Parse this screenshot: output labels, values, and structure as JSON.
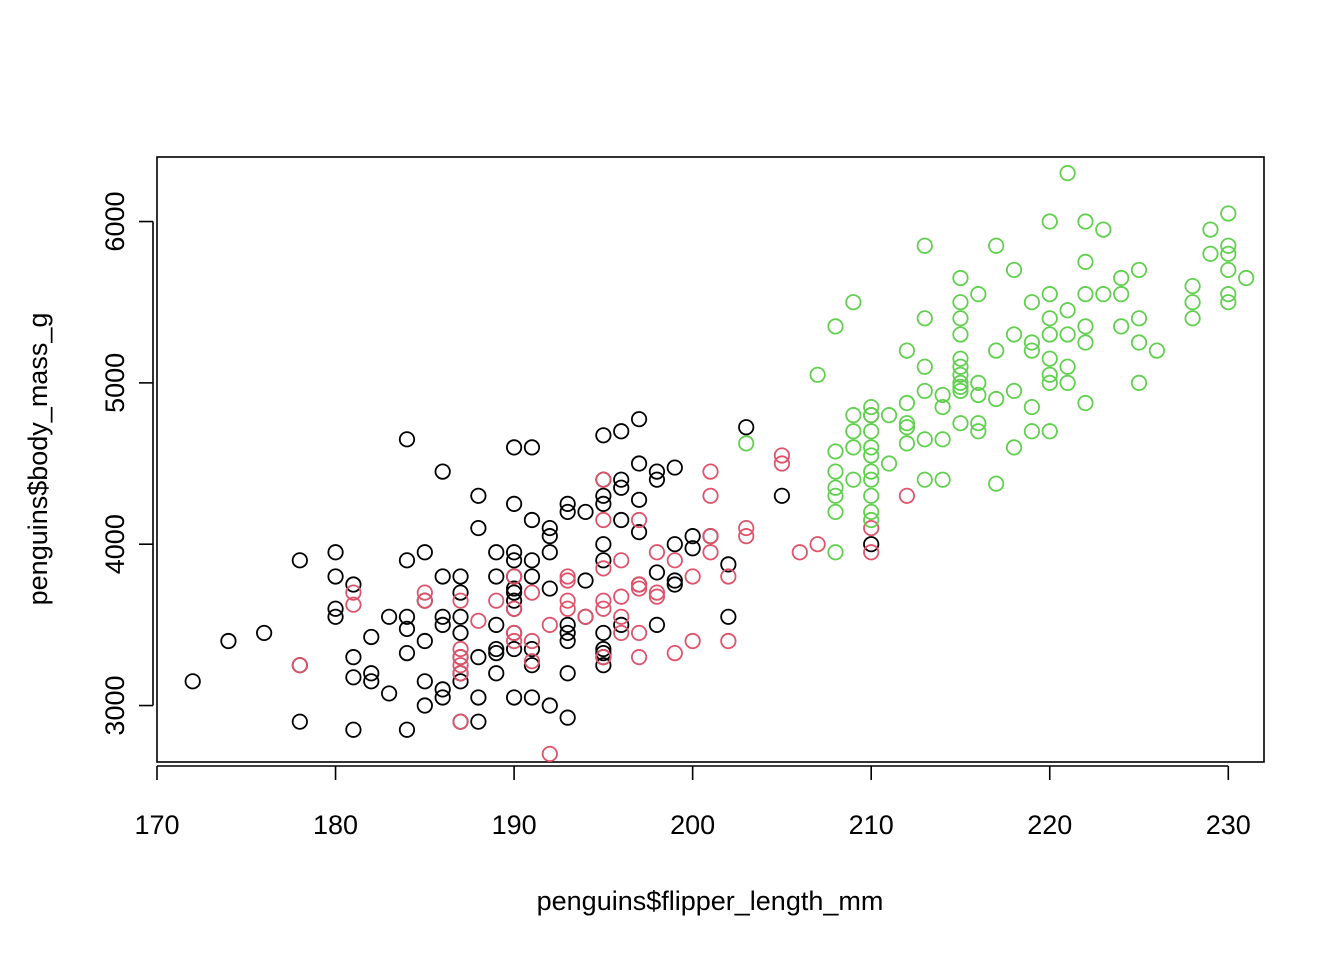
{
  "chart_data": {
    "type": "scatter",
    "title": "",
    "xlabel": "penguins$flipper_length_mm",
    "ylabel": "penguins$body_mass_g",
    "xlim": [
      170,
      232
    ],
    "ylim": [
      2650,
      6400
    ],
    "x_ticks": [
      170,
      180,
      190,
      200,
      210,
      220,
      230
    ],
    "y_ticks": [
      3000,
      4000,
      5000,
      6000
    ],
    "x_tick_labels": [
      "170",
      "180",
      "190",
      "200",
      "210",
      "220",
      "230"
    ],
    "y_tick_labels": [
      "3000",
      "4000",
      "5000",
      "6000"
    ],
    "grid": false,
    "legend": "none",
    "marker": "open-circle",
    "series": [
      {
        "color": "#000000",
        "points": [
          [
            172,
            3150
          ],
          [
            174,
            3400
          ],
          [
            176,
            3450
          ],
          [
            178,
            3900
          ],
          [
            178,
            2900
          ],
          [
            178,
            3250
          ],
          [
            180,
            3950
          ],
          [
            180,
            3800
          ],
          [
            180,
            3600
          ],
          [
            180,
            3550
          ],
          [
            181,
            3750
          ],
          [
            181,
            3300
          ],
          [
            181,
            2850
          ],
          [
            181,
            3175
          ],
          [
            182,
            3200
          ],
          [
            182,
            3150
          ],
          [
            182,
            3425
          ],
          [
            183,
            3075
          ],
          [
            183,
            3550
          ],
          [
            184,
            4650
          ],
          [
            184,
            3900
          ],
          [
            184,
            3550
          ],
          [
            184,
            3475
          ],
          [
            184,
            3325
          ],
          [
            184,
            2850
          ],
          [
            185,
            3950
          ],
          [
            185,
            3650
          ],
          [
            185,
            3400
          ],
          [
            185,
            3150
          ],
          [
            185,
            3000
          ],
          [
            186,
            4450
          ],
          [
            186,
            3800
          ],
          [
            186,
            3550
          ],
          [
            186,
            3500
          ],
          [
            186,
            3100
          ],
          [
            186,
            3050
          ],
          [
            187,
            3800
          ],
          [
            187,
            3700
          ],
          [
            187,
            3550
          ],
          [
            187,
            3450
          ],
          [
            187,
            3300
          ],
          [
            187,
            3200
          ],
          [
            187,
            3150
          ],
          [
            187,
            2900
          ],
          [
            188,
            4300
          ],
          [
            188,
            4100
          ],
          [
            188,
            3300
          ],
          [
            188,
            3050
          ],
          [
            188,
            2900
          ],
          [
            189,
            3950
          ],
          [
            189,
            3800
          ],
          [
            189,
            3500
          ],
          [
            189,
            3350
          ],
          [
            189,
            3325
          ],
          [
            189,
            3200
          ],
          [
            190,
            4600
          ],
          [
            190,
            4250
          ],
          [
            190,
            3950
          ],
          [
            190,
            3900
          ],
          [
            190,
            3800
          ],
          [
            190,
            3725
          ],
          [
            190,
            3700
          ],
          [
            190,
            3650
          ],
          [
            190,
            3600
          ],
          [
            190,
            3450
          ],
          [
            190,
            3350
          ],
          [
            190,
            3050
          ],
          [
            191,
            4600
          ],
          [
            191,
            4150
          ],
          [
            191,
            3900
          ],
          [
            191,
            3800
          ],
          [
            191,
            3350
          ],
          [
            191,
            3250
          ],
          [
            191,
            3050
          ],
          [
            192,
            4100
          ],
          [
            192,
            4050
          ],
          [
            192,
            3950
          ],
          [
            192,
            3725
          ],
          [
            192,
            3000
          ],
          [
            193,
            4250
          ],
          [
            193,
            4200
          ],
          [
            193,
            3500
          ],
          [
            193,
            3450
          ],
          [
            193,
            3400
          ],
          [
            193,
            3200
          ],
          [
            193,
            2925
          ],
          [
            194,
            4200
          ],
          [
            194,
            3775
          ],
          [
            194,
            3550
          ],
          [
            195,
            4675
          ],
          [
            195,
            4400
          ],
          [
            195,
            4300
          ],
          [
            195,
            4250
          ],
          [
            195,
            4000
          ],
          [
            195,
            3900
          ],
          [
            195,
            3450
          ],
          [
            195,
            3350
          ],
          [
            195,
            3325
          ],
          [
            195,
            3300
          ],
          [
            195,
            3250
          ],
          [
            196,
            4700
          ],
          [
            196,
            4400
          ],
          [
            196,
            4350
          ],
          [
            196,
            4150
          ],
          [
            196,
            3500
          ],
          [
            197,
            4775
          ],
          [
            197,
            4500
          ],
          [
            197,
            4275
          ],
          [
            197,
            4075
          ],
          [
            197,
            3750
          ],
          [
            198,
            4450
          ],
          [
            198,
            4400
          ],
          [
            198,
            3825
          ],
          [
            198,
            3500
          ],
          [
            199,
            4475
          ],
          [
            199,
            4000
          ],
          [
            199,
            3775
          ],
          [
            199,
            3750
          ],
          [
            200,
            4050
          ],
          [
            200,
            3975
          ],
          [
            201,
            4050
          ],
          [
            202,
            3875
          ],
          [
            202,
            3550
          ],
          [
            203,
            4725
          ],
          [
            205,
            4300
          ],
          [
            210,
            4000
          ]
        ]
      },
      {
        "color": "#DF536B",
        "points": [
          [
            178,
            3250
          ],
          [
            181,
            3700
          ],
          [
            181,
            3625
          ],
          [
            185,
            3700
          ],
          [
            185,
            3650
          ],
          [
            187,
            3650
          ],
          [
            187,
            3350
          ],
          [
            187,
            3300
          ],
          [
            187,
            3250
          ],
          [
            187,
            3200
          ],
          [
            187,
            2900
          ],
          [
            188,
            3525
          ],
          [
            189,
            3650
          ],
          [
            190,
            3800
          ],
          [
            190,
            3600
          ],
          [
            190,
            3450
          ],
          [
            190,
            3400
          ],
          [
            191,
            3700
          ],
          [
            191,
            3400
          ],
          [
            191,
            3275
          ],
          [
            192,
            3500
          ],
          [
            192,
            2700
          ],
          [
            193,
            3800
          ],
          [
            193,
            3775
          ],
          [
            193,
            3650
          ],
          [
            193,
            3600
          ],
          [
            194,
            3550
          ],
          [
            195,
            4400
          ],
          [
            195,
            4150
          ],
          [
            195,
            3850
          ],
          [
            195,
            3650
          ],
          [
            195,
            3600
          ],
          [
            195,
            3300
          ],
          [
            196,
            3900
          ],
          [
            196,
            3675
          ],
          [
            196,
            3550
          ],
          [
            196,
            3450
          ],
          [
            197,
            4150
          ],
          [
            197,
            3750
          ],
          [
            197,
            3725
          ],
          [
            197,
            3450
          ],
          [
            197,
            3300
          ],
          [
            198,
            3950
          ],
          [
            198,
            3700
          ],
          [
            198,
            3675
          ],
          [
            199,
            3900
          ],
          [
            199,
            3325
          ],
          [
            200,
            3800
          ],
          [
            200,
            3400
          ],
          [
            201,
            4450
          ],
          [
            201,
            4300
          ],
          [
            201,
            4050
          ],
          [
            201,
            3950
          ],
          [
            202,
            3800
          ],
          [
            202,
            3400
          ],
          [
            203,
            4100
          ],
          [
            203,
            4050
          ],
          [
            205,
            4550
          ],
          [
            205,
            4500
          ],
          [
            206,
            3950
          ],
          [
            207,
            4000
          ],
          [
            210,
            4800
          ],
          [
            210,
            4100
          ],
          [
            210,
            3950
          ],
          [
            212,
            4300
          ]
        ]
      },
      {
        "color": "#61D04F",
        "points": [
          [
            203,
            4625
          ],
          [
            207,
            5050
          ],
          [
            208,
            5350
          ],
          [
            208,
            4575
          ],
          [
            208,
            4450
          ],
          [
            208,
            4350
          ],
          [
            208,
            4300
          ],
          [
            208,
            4200
          ],
          [
            208,
            3950
          ],
          [
            209,
            5500
          ],
          [
            209,
            4800
          ],
          [
            209,
            4700
          ],
          [
            209,
            4600
          ],
          [
            209,
            4400
          ],
          [
            210,
            4850
          ],
          [
            210,
            4800
          ],
          [
            210,
            4700
          ],
          [
            210,
            4600
          ],
          [
            210,
            4550
          ],
          [
            210,
            4450
          ],
          [
            210,
            4400
          ],
          [
            210,
            4300
          ],
          [
            210,
            4200
          ],
          [
            210,
            4150
          ],
          [
            211,
            4800
          ],
          [
            211,
            4500
          ],
          [
            212,
            5200
          ],
          [
            212,
            4875
          ],
          [
            212,
            4750
          ],
          [
            212,
            4725
          ],
          [
            212,
            4625
          ],
          [
            213,
            5850
          ],
          [
            213,
            5400
          ],
          [
            213,
            5100
          ],
          [
            213,
            4950
          ],
          [
            213,
            4650
          ],
          [
            213,
            4400
          ],
          [
            214,
            4925
          ],
          [
            214,
            4850
          ],
          [
            214,
            4650
          ],
          [
            214,
            4400
          ],
          [
            215,
            5650
          ],
          [
            215,
            5500
          ],
          [
            215,
            5400
          ],
          [
            215,
            5300
          ],
          [
            215,
            5150
          ],
          [
            215,
            5100
          ],
          [
            215,
            5050
          ],
          [
            215,
            5000
          ],
          [
            215,
            4975
          ],
          [
            215,
            4950
          ],
          [
            215,
            4750
          ],
          [
            216,
            5550
          ],
          [
            216,
            5000
          ],
          [
            216,
            4925
          ],
          [
            216,
            4750
          ],
          [
            216,
            4700
          ],
          [
            217,
            5850
          ],
          [
            217,
            5200
          ],
          [
            217,
            4900
          ],
          [
            217,
            4375
          ],
          [
            218,
            5700
          ],
          [
            218,
            5300
          ],
          [
            218,
            4950
          ],
          [
            218,
            4600
          ],
          [
            219,
            5500
          ],
          [
            219,
            5250
          ],
          [
            219,
            5200
          ],
          [
            219,
            4850
          ],
          [
            219,
            4700
          ],
          [
            220,
            6000
          ],
          [
            220,
            5550
          ],
          [
            220,
            5400
          ],
          [
            220,
            5300
          ],
          [
            220,
            5150
          ],
          [
            220,
            5050
          ],
          [
            220,
            5000
          ],
          [
            220,
            4700
          ],
          [
            221,
            6300
          ],
          [
            221,
            5450
          ],
          [
            221,
            5300
          ],
          [
            221,
            5100
          ],
          [
            221,
            5000
          ],
          [
            222,
            6000
          ],
          [
            222,
            5750
          ],
          [
            222,
            5550
          ],
          [
            222,
            5350
          ],
          [
            222,
            5250
          ],
          [
            222,
            4875
          ],
          [
            223,
            5950
          ],
          [
            223,
            5550
          ],
          [
            224,
            5650
          ],
          [
            224,
            5550
          ],
          [
            224,
            5350
          ],
          [
            225,
            5700
          ],
          [
            225,
            5400
          ],
          [
            225,
            5250
          ],
          [
            225,
            5000
          ],
          [
            226,
            5200
          ],
          [
            228,
            5600
          ],
          [
            228,
            5500
          ],
          [
            228,
            5400
          ],
          [
            229,
            5950
          ],
          [
            229,
            5800
          ],
          [
            230,
            6050
          ],
          [
            230,
            5850
          ],
          [
            230,
            5800
          ],
          [
            230,
            5700
          ],
          [
            230,
            5550
          ],
          [
            230,
            5500
          ],
          [
            231,
            5650
          ]
        ]
      }
    ]
  }
}
